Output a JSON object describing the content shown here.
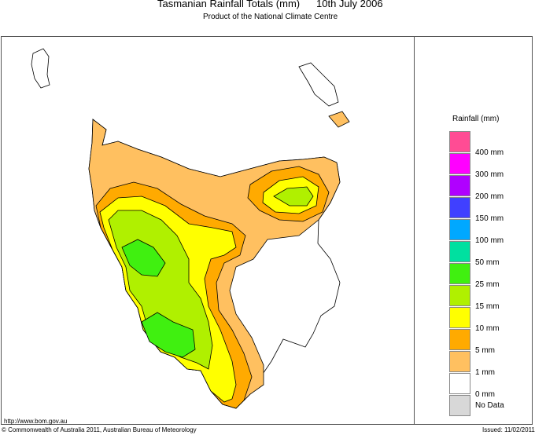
{
  "header": {
    "title": "Tasmanian Rainfall Totals (mm)",
    "date": "10th July 2006",
    "subtitle": "Product of the National Climate Centre"
  },
  "legend": {
    "title": "Rainfall (mm)",
    "colors": [
      "#ff4c94",
      "#ff00ff",
      "#b000ff",
      "#4040ff",
      "#00a8ff",
      "#00e0a0",
      "#40f010",
      "#b0f000",
      "#ffff00",
      "#ffaa00",
      "#ffc060",
      "#ffffff",
      "#d8d8d8"
    ],
    "labels": [
      "400 mm",
      "300 mm",
      "200 mm",
      "150 mm",
      "100 mm",
      "50 mm",
      "25 mm",
      "15 mm",
      "10 mm",
      "5 mm",
      "1 mm",
      "0 mm",
      "No Data"
    ]
  },
  "footer": {
    "url": "http://www.bom.gov.au",
    "copyright": "© Commonwealth of Australia 2011, Australian Bureau of Meteorology",
    "issued": "Issued: 11/02/2011"
  }
}
